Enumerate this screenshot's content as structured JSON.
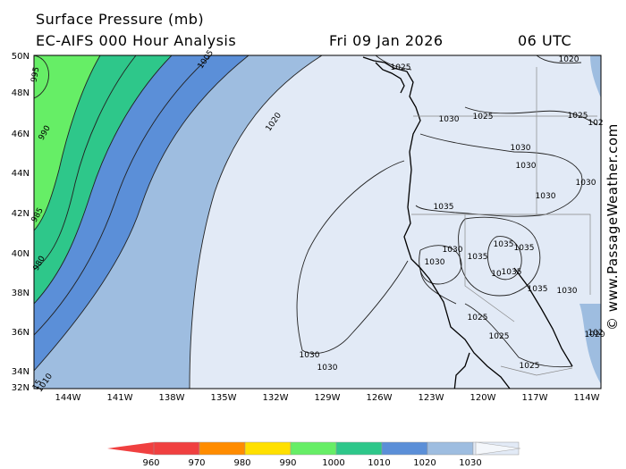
{
  "header": {
    "title": "Surface Pressure (mb)",
    "model": "EC-AIFS 000 Hour Analysis",
    "date": "Fri 09 Jan 2026",
    "time": "06 UTC"
  },
  "map": {
    "lat_labels": [
      "50N",
      "48N",
      "46N",
      "44N",
      "42N",
      "40N",
      "38N",
      "36N",
      "34N",
      "32N"
    ],
    "lon_labels": [
      "144W",
      "141W",
      "138W",
      "135W",
      "132W",
      "129W",
      "126W",
      "123W",
      "120W",
      "117W",
      "114W"
    ],
    "isobar_labels": [
      {
        "text": "1025"
      },
      {
        "text": "1030"
      },
      {
        "text": "1025"
      },
      {
        "text": "1025"
      },
      {
        "text": "1020"
      },
      {
        "text": "1030"
      },
      {
        "text": "1030"
      },
      {
        "text": "1030"
      },
      {
        "text": "1030"
      },
      {
        "text": "1035"
      },
      {
        "text": "1030"
      },
      {
        "text": "1030"
      },
      {
        "text": "1035"
      },
      {
        "text": "1035"
      },
      {
        "text": "1035"
      },
      {
        "text": "1035"
      },
      {
        "text": "1035"
      },
      {
        "text": "1030"
      },
      {
        "text": "1025"
      },
      {
        "text": "1025"
      },
      {
        "text": "1030"
      },
      {
        "text": "1030"
      },
      {
        "text": "1025"
      },
      {
        "text": "1020"
      },
      {
        "text": "1020"
      },
      {
        "text": "1005"
      },
      {
        "text": "1010"
      },
      {
        "text": "995"
      },
      {
        "text": "990"
      },
      {
        "text": "985"
      },
      {
        "text": "980"
      },
      {
        "text": "15"
      },
      {
        "text": "102"
      },
      {
        "text": "102"
      },
      {
        "text": "10"
      }
    ]
  },
  "legend": {
    "labels": [
      "960",
      "970",
      "980",
      "990",
      "1000",
      "1010",
      "1020",
      "1030"
    ],
    "colors": [
      "#f04040",
      "#ff8c00",
      "#ffe000",
      "#66ee66",
      "#2ec78a",
      "#5b8fd8",
      "#9ebde0",
      "#e2eaf6"
    ]
  },
  "credit": "© www.PassageWeather.com"
}
